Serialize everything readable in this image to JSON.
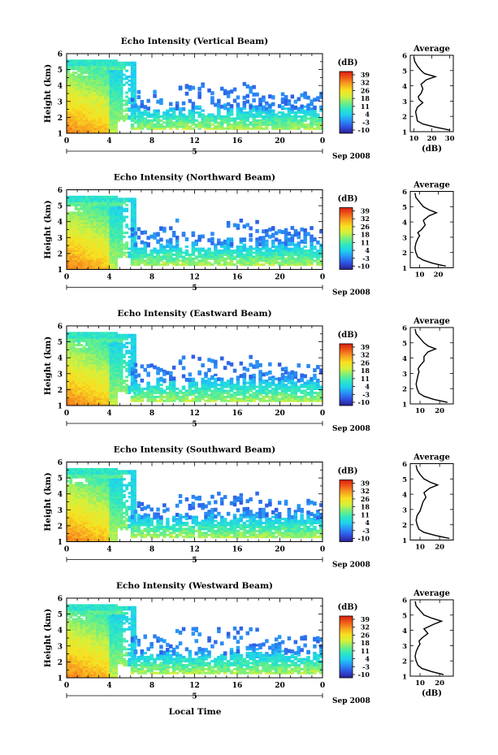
{
  "figure": {
    "xlabel": "Local Time"
  },
  "colorbar": {
    "unit": "(dB)",
    "tick_labels": [
      "39",
      "32",
      "26",
      "18",
      "11",
      "4",
      "-3",
      "-10"
    ],
    "range": [
      -10,
      39
    ],
    "colors": [
      "#2b1f8f",
      "#2f4fe0",
      "#2a8ff5",
      "#1fd0f0",
      "#2fe8c0",
      "#7af07a",
      "#d8f03a",
      "#f8e020",
      "#f8a020",
      "#f05a18",
      "#d81e10"
    ]
  },
  "panels": [
    {
      "title": "Echo Intensity (Vertical Beam)",
      "ylabel": "Height (km)",
      "date_label": "Sep 2008",
      "day_label": "5",
      "x_ticks": [
        "0",
        "4",
        "8",
        "12",
        "16",
        "20",
        "0"
      ],
      "y_ticks": [
        "1",
        "2",
        "3",
        "4",
        "5",
        "6"
      ],
      "avg": {
        "title": "Average",
        "xlabel": "(dB)",
        "x_ticks": [
          "10",
          "20",
          "30"
        ],
        "xlim": [
          8,
          32
        ]
      }
    },
    {
      "title": "Echo Intensity (Northward Beam)",
      "ylabel": "Height (km)",
      "date_label": "Sep 2008",
      "day_label": "5",
      "x_ticks": [
        "0",
        "4",
        "8",
        "12",
        "16",
        "20",
        "0"
      ],
      "y_ticks": [
        "1",
        "2",
        "3",
        "4",
        "5",
        "6"
      ],
      "avg": {
        "title": "Average",
        "xlabel": "",
        "x_ticks": [
          "10",
          "20"
        ],
        "xlim": [
          5,
          28
        ]
      }
    },
    {
      "title": "Echo Intensity (Eastward Beam)",
      "ylabel": "Height (km)",
      "date_label": "Sep 2008",
      "day_label": "5",
      "x_ticks": [
        "0",
        "4",
        "8",
        "12",
        "16",
        "20",
        "0"
      ],
      "y_ticks": [
        "1",
        "2",
        "3",
        "4",
        "5",
        "6"
      ],
      "avg": {
        "title": "Average",
        "xlabel": "",
        "x_ticks": [
          "10",
          "20"
        ],
        "xlim": [
          5,
          27
        ]
      }
    },
    {
      "title": "Echo Intensity (Southward Beam)",
      "ylabel": "Height (km)",
      "date_label": "Sep 2008",
      "day_label": "5",
      "x_ticks": [
        "0",
        "4",
        "8",
        "12",
        "16",
        "20",
        "0"
      ],
      "y_ticks": [
        "1",
        "2",
        "3",
        "4",
        "5",
        "6"
      ],
      "avg": {
        "title": "Average",
        "xlabel": "",
        "x_ticks": [
          "10",
          "20"
        ],
        "xlim": [
          5,
          27
        ]
      }
    },
    {
      "title": "Echo Intensity (Westward Beam)",
      "ylabel": "Height (km)",
      "date_label": "Sep 2008",
      "day_label": "5",
      "x_ticks": [
        "0",
        "4",
        "8",
        "12",
        "16",
        "20",
        "0"
      ],
      "y_ticks": [
        "1",
        "2",
        "3",
        "4",
        "5",
        "6"
      ],
      "avg": {
        "title": "Average",
        "xlabel": "(dB)",
        "x_ticks": [
          "10",
          "20"
        ],
        "xlim": [
          5,
          27
        ]
      }
    }
  ],
  "chart_data": [
    {
      "type": "heatmap",
      "title": "Echo Intensity (Vertical Beam)",
      "xlabel": "",
      "ylabel": "Height (km)",
      "xlim": [
        0,
        24
      ],
      "ylim": [
        1,
        6
      ],
      "colorbar_range": [
        -10,
        39
      ],
      "profile": {
        "type": "line",
        "title": "Average",
        "xlabel": "(dB)",
        "xlim": [
          8,
          32
        ],
        "ylim": [
          1,
          6
        ],
        "height_km": [
          1.1,
          1.3,
          1.5,
          1.7,
          2.0,
          2.3,
          2.6,
          2.9,
          3.1,
          3.3,
          3.5,
          3.8,
          4.1,
          4.4,
          4.6,
          4.8,
          5.0,
          5.3,
          5.6,
          5.9
        ],
        "db": [
          30,
          22,
          15,
          12,
          11.5,
          11,
          12,
          15,
          13,
          12.5,
          14,
          15,
          14,
          17,
          22,
          16,
          14,
          12,
          10.5,
          10
        ]
      }
    },
    {
      "type": "heatmap",
      "title": "Echo Intensity (Northward Beam)",
      "xlabel": "",
      "ylabel": "Height (km)",
      "xlim": [
        0,
        24
      ],
      "ylim": [
        1,
        6
      ],
      "colorbar_range": [
        -10,
        39
      ],
      "profile": {
        "type": "line",
        "title": "Average",
        "xlabel": "",
        "xlim": [
          5,
          28
        ],
        "ylim": [
          1,
          6
        ],
        "height_km": [
          1.1,
          1.3,
          1.5,
          1.7,
          2.0,
          2.3,
          2.6,
          2.9,
          3.1,
          3.3,
          3.5,
          3.8,
          4.1,
          4.4,
          4.6,
          4.8,
          5.0,
          5.3,
          5.6,
          5.9
        ],
        "db": [
          24,
          17,
          12,
          9,
          8,
          7.5,
          8,
          9,
          10,
          9,
          11,
          13,
          12,
          15,
          19,
          15,
          12,
          10,
          8,
          7.5
        ]
      }
    },
    {
      "type": "heatmap",
      "title": "Echo Intensity (Eastward Beam)",
      "xlabel": "",
      "ylabel": "Height (km)",
      "xlim": [
        0,
        24
      ],
      "ylim": [
        1,
        6
      ],
      "colorbar_range": [
        -10,
        39
      ],
      "profile": {
        "type": "line",
        "title": "Average",
        "xlabel": "",
        "xlim": [
          5,
          27
        ],
        "ylim": [
          1,
          6
        ],
        "height_km": [
          1.1,
          1.3,
          1.5,
          1.7,
          2.0,
          2.3,
          2.6,
          2.9,
          3.1,
          3.3,
          3.5,
          3.8,
          4.1,
          4.4,
          4.6,
          4.8,
          5.0,
          5.3,
          5.6,
          5.9
        ],
        "db": [
          24,
          17,
          12,
          9.5,
          8.5,
          8,
          8.5,
          9,
          9.5,
          9,
          10,
          12,
          12,
          14,
          18,
          14,
          12,
          10,
          8,
          7.5
        ]
      }
    },
    {
      "type": "heatmap",
      "title": "Echo Intensity (Southward Beam)",
      "xlabel": "",
      "ylabel": "Height (km)",
      "xlim": [
        0,
        24
      ],
      "ylim": [
        1,
        6
      ],
      "colorbar_range": [
        -10,
        39
      ],
      "profile": {
        "type": "line",
        "title": "Average",
        "xlabel": "",
        "xlim": [
          5,
          27
        ],
        "ylim": [
          1,
          6
        ],
        "height_km": [
          1.1,
          1.3,
          1.5,
          1.7,
          2.0,
          2.3,
          2.6,
          2.9,
          3.1,
          3.3,
          3.5,
          3.8,
          4.1,
          4.4,
          4.6,
          4.8,
          5.0,
          5.3,
          5.6,
          5.9
        ],
        "db": [
          25,
          18,
          12,
          9.5,
          8.5,
          8,
          8.5,
          10,
          10.5,
          11,
          11.5,
          13,
          12,
          15,
          19,
          15,
          12,
          10,
          8.5,
          8
        ]
      }
    },
    {
      "type": "heatmap",
      "title": "Echo Intensity (Westward Beam)",
      "xlabel": "Local Time",
      "ylabel": "Height (km)",
      "xlim": [
        0,
        24
      ],
      "ylim": [
        1,
        6
      ],
      "colorbar_range": [
        -10,
        39
      ],
      "profile": {
        "type": "line",
        "title": "Average",
        "xlabel": "(dB)",
        "xlim": [
          5,
          27
        ],
        "ylim": [
          1,
          6
        ],
        "height_km": [
          1.1,
          1.3,
          1.5,
          1.7,
          2.0,
          2.3,
          2.6,
          2.9,
          3.1,
          3.3,
          3.5,
          3.8,
          4.1,
          4.4,
          4.6,
          4.8,
          5.0,
          5.3,
          5.6,
          5.9
        ],
        "db": [
          22,
          16,
          11,
          9,
          8,
          7.5,
          8,
          9,
          10,
          9.5,
          11,
          14,
          12,
          17,
          21,
          16,
          12,
          10,
          8,
          7.5
        ]
      }
    }
  ]
}
